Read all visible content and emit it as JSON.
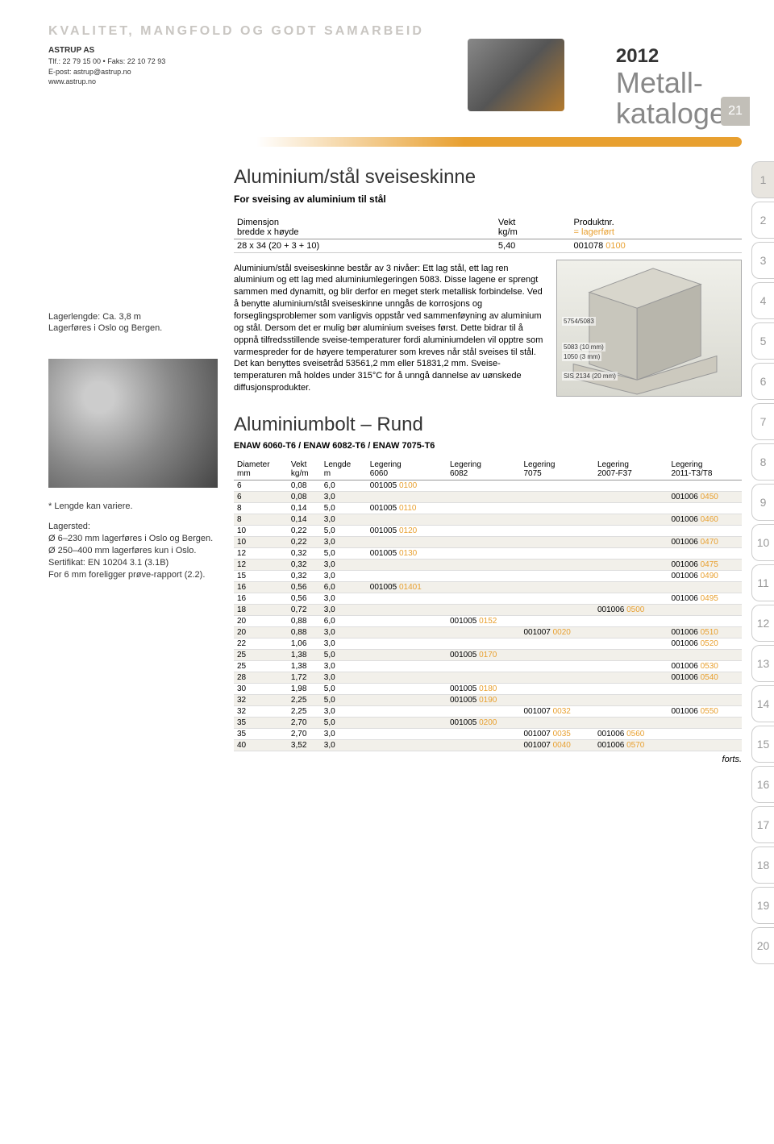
{
  "header": {
    "tagline": "KVALITET, MANGFOLD OG GODT SAMARBEID",
    "company": {
      "name": "ASTRUP AS",
      "phone": "Tlf.: 22 79 15 00 • Faks: 22 10 72 93",
      "email": "E-post: astrup@astrup.no",
      "web": "www.astrup.no"
    },
    "year": "2012",
    "catalog_line1": "Metall-",
    "catalog_line2": "katalogen",
    "page_number": "21"
  },
  "side_tabs": [
    "1",
    "2",
    "3",
    "4",
    "5",
    "6",
    "7",
    "8",
    "9",
    "10",
    "11",
    "12",
    "13",
    "14",
    "15",
    "16",
    "17",
    "18",
    "19",
    "20"
  ],
  "section1": {
    "title": "Aluminium/stål sveiseskinne",
    "subtitle": "For sveising av aluminium til stål",
    "left_note_1": "Lagerlengde: Ca. 3,8 m",
    "left_note_2": "Lagerføres i Oslo og Bergen.",
    "table_headers": {
      "dim_l1": "Dimensjon",
      "dim_l2": "bredde x høyde",
      "vekt_l1": "Vekt",
      "vekt_l2": "kg/m",
      "prod_l1": "Produktnr.",
      "prod_l2": "= lagerført"
    },
    "table_row": {
      "dim": "28 x 34 (20 + 3 + 10)",
      "vekt": "5,40",
      "prod_pre": "001078 ",
      "prod_sfx": "0100"
    },
    "body": "Aluminium/stål sveiseskinne består av 3 nivåer: Ett lag stål, ett lag ren aluminium og ett lag med aluminiumlegeringen 5083. Disse lagene er sprengt sammen med dynamitt, og blir derfor en meget sterk metallisk forbindelse. Ved å benytte aluminium/stål sveiseskinne unngås de korrosjons og forseglingsproblemer som vanligvis oppstår ved sammenføyning av aluminium og stål. Dersom det er mulig bør aluminium sveises først. Dette bidrar til å oppnå tilfredsstillende sveise-temperaturer fordi aluminiumdelen vil opptre som varmespreder for de høyere temperaturer som kreves når stål sveises til stål. Det kan benyttes sveisetråd 53561,2 mm eller 51831,2 mm. Sveise-temperaturen må holdes under 315°C for å unngå dannelse av uønskede diffusjonsprodukter.",
    "diagram_labels": {
      "a": "5754/5083",
      "b": "5083 (10 mm)",
      "c": "1050 (3 mm)",
      "d": "SIS 2134 (20 mm)"
    }
  },
  "section2": {
    "title": "Aluminiumbolt – Rund",
    "subtitle": "ENAW 6060-T6 / ENAW 6082-T6 / ENAW 7075-T6",
    "left_notes": [
      "* Lengde kan variere.",
      "Lagersted:",
      "Ø 6–230 mm lagerføres i Oslo og Bergen.",
      "Ø 250–400 mm lagerføres kun i Oslo.",
      "Sertifikat: EN 10204 3.1 (3.1B)",
      "For 6 mm foreligger prøve-rapport (2.2)."
    ],
    "headers": {
      "dia_l1": "Diameter",
      "dia_l2": "mm",
      "vekt_l1": "Vekt",
      "vekt_l2": "kg/m",
      "len_l1": "Lengde",
      "len_l2": "m",
      "leg1_l1": "Legering",
      "leg1_l2": "6060",
      "leg2_l1": "Legering",
      "leg2_l2": "6082",
      "leg3_l1": "Legering",
      "leg3_l2": "7075",
      "leg4_l1": "Legering",
      "leg4_l2": "2007-F37",
      "leg5_l1": "Legering",
      "leg5_l2": "2011-T3/T8"
    },
    "rows": [
      {
        "d": "6",
        "w": "0,08",
        "l": "6,0",
        "c1p": "001005 ",
        "c1s": "0100",
        "c2p": "",
        "c2s": "",
        "c3p": "",
        "c3s": "",
        "c4p": "",
        "c4s": "",
        "c5p": "",
        "c5s": ""
      },
      {
        "d": "6",
        "w": "0,08",
        "l": "3,0",
        "c1p": "",
        "c1s": "",
        "c2p": "",
        "c2s": "",
        "c3p": "",
        "c3s": "",
        "c4p": "",
        "c4s": "",
        "c5p": "001006 ",
        "c5s": "0450"
      },
      {
        "d": "8",
        "w": "0,14",
        "l": "5,0",
        "c1p": "001005 ",
        "c1s": "0110",
        "c2p": "",
        "c2s": "",
        "c3p": "",
        "c3s": "",
        "c4p": "",
        "c4s": "",
        "c5p": "",
        "c5s": ""
      },
      {
        "d": "8",
        "w": "0,14",
        "l": "3,0",
        "c1p": "",
        "c1s": "",
        "c2p": "",
        "c2s": "",
        "c3p": "",
        "c3s": "",
        "c4p": "",
        "c4s": "",
        "c5p": "001006 ",
        "c5s": "0460"
      },
      {
        "d": "10",
        "w": "0,22",
        "l": "5,0",
        "c1p": "001005 ",
        "c1s": "0120",
        "c2p": "",
        "c2s": "",
        "c3p": "",
        "c3s": "",
        "c4p": "",
        "c4s": "",
        "c5p": "",
        "c5s": ""
      },
      {
        "d": "10",
        "w": "0,22",
        "l": "3,0",
        "c1p": "",
        "c1s": "",
        "c2p": "",
        "c2s": "",
        "c3p": "",
        "c3s": "",
        "c4p": "",
        "c4s": "",
        "c5p": "001006 ",
        "c5s": "0470"
      },
      {
        "d": "12",
        "w": "0,32",
        "l": "5,0",
        "c1p": "001005 ",
        "c1s": "0130",
        "c2p": "",
        "c2s": "",
        "c3p": "",
        "c3s": "",
        "c4p": "",
        "c4s": "",
        "c5p": "",
        "c5s": ""
      },
      {
        "d": "12",
        "w": "0,32",
        "l": "3,0",
        "c1p": "",
        "c1s": "",
        "c2p": "",
        "c2s": "",
        "c3p": "",
        "c3s": "",
        "c4p": "",
        "c4s": "",
        "c5p": "001006 ",
        "c5s": "0475"
      },
      {
        "d": "15",
        "w": "0,32",
        "l": "3,0",
        "c1p": "",
        "c1s": "",
        "c2p": "",
        "c2s": "",
        "c3p": "",
        "c3s": "",
        "c4p": "",
        "c4s": "",
        "c5p": "001006 ",
        "c5s": "0490"
      },
      {
        "d": "16",
        "w": "0,56",
        "l": "6,0",
        "c1p": "001005 ",
        "c1s": "01401",
        "c2p": "",
        "c2s": "",
        "c3p": "",
        "c3s": "",
        "c4p": "",
        "c4s": "",
        "c5p": "",
        "c5s": ""
      },
      {
        "d": "16",
        "w": "0,56",
        "l": "3,0",
        "c1p": "",
        "c1s": "",
        "c2p": "",
        "c2s": "",
        "c3p": "",
        "c3s": "",
        "c4p": "",
        "c4s": "",
        "c5p": "001006 ",
        "c5s": "0495"
      },
      {
        "d": "18",
        "w": "0,72",
        "l": "3,0",
        "c1p": "",
        "c1s": "",
        "c2p": "",
        "c2s": "",
        "c3p": "",
        "c3s": "",
        "c4p": "001006 ",
        "c4s": "0500",
        "c5p": "",
        "c5s": ""
      },
      {
        "d": "20",
        "w": "0,88",
        "l": "6,0",
        "c1p": "",
        "c1s": "",
        "c2p": "001005 ",
        "c2s": "0152",
        "c3p": "",
        "c3s": "",
        "c4p": "",
        "c4s": "",
        "c5p": "",
        "c5s": ""
      },
      {
        "d": "20",
        "w": "0,88",
        "l": "3,0",
        "c1p": "",
        "c1s": "",
        "c2p": "",
        "c2s": "",
        "c3p": "001007 ",
        "c3s": "0020",
        "c4p": "",
        "c4s": "",
        "c5p": "001006 ",
        "c5s": "0510"
      },
      {
        "d": "22",
        "w": "1,06",
        "l": "3,0",
        "c1p": "",
        "c1s": "",
        "c2p": "",
        "c2s": "",
        "c3p": "",
        "c3s": "",
        "c4p": "",
        "c4s": "",
        "c5p": "001006 ",
        "c5s": "0520"
      },
      {
        "d": "25",
        "w": "1,38",
        "l": "5,0",
        "c1p": "",
        "c1s": "",
        "c2p": "001005 ",
        "c2s": "0170",
        "c3p": "",
        "c3s": "",
        "c4p": "",
        "c4s": "",
        "c5p": "",
        "c5s": ""
      },
      {
        "d": "25",
        "w": "1,38",
        "l": "3,0",
        "c1p": "",
        "c1s": "",
        "c2p": "",
        "c2s": "",
        "c3p": "",
        "c3s": "",
        "c4p": "",
        "c4s": "",
        "c5p": "001006 ",
        "c5s": "0530"
      },
      {
        "d": "28",
        "w": "1,72",
        "l": "3,0",
        "c1p": "",
        "c1s": "",
        "c2p": "",
        "c2s": "",
        "c3p": "",
        "c3s": "",
        "c4p": "",
        "c4s": "",
        "c5p": "001006 ",
        "c5s": "0540"
      },
      {
        "d": "30",
        "w": "1,98",
        "l": "5,0",
        "c1p": "",
        "c1s": "",
        "c2p": "001005 ",
        "c2s": "0180",
        "c3p": "",
        "c3s": "",
        "c4p": "",
        "c4s": "",
        "c5p": "",
        "c5s": ""
      },
      {
        "d": "32",
        "w": "2,25",
        "l": "5,0",
        "c1p": "",
        "c1s": "",
        "c2p": "001005 ",
        "c2s": "0190",
        "c3p": "",
        "c3s": "",
        "c4p": "",
        "c4s": "",
        "c5p": "",
        "c5s": ""
      },
      {
        "d": "32",
        "w": "2,25",
        "l": "3,0",
        "c1p": "",
        "c1s": "",
        "c2p": "",
        "c2s": "",
        "c3p": "001007 ",
        "c3s": "0032",
        "c4p": "",
        "c4s": "",
        "c5p": "001006 ",
        "c5s": "0550"
      },
      {
        "d": "35",
        "w": "2,70",
        "l": "5,0",
        "c1p": "",
        "c1s": "",
        "c2p": "001005 ",
        "c2s": "0200",
        "c3p": "",
        "c3s": "",
        "c4p": "",
        "c4s": "",
        "c5p": "",
        "c5s": ""
      },
      {
        "d": "35",
        "w": "2,70",
        "l": "3,0",
        "c1p": "",
        "c1s": "",
        "c2p": "",
        "c2s": "",
        "c3p": "001007 ",
        "c3s": "0035",
        "c4p": "001006 ",
        "c4s": "0560",
        "c5p": "",
        "c5s": ""
      },
      {
        "d": "40",
        "w": "3,52",
        "l": "3,0",
        "c1p": "",
        "c1s": "",
        "c2p": "",
        "c2s": "",
        "c3p": "001007 ",
        "c3s": "0040",
        "c4p": "001006 ",
        "c4s": "0570",
        "c5p": "",
        "c5s": ""
      }
    ],
    "forts": "forts."
  },
  "colors": {
    "orange": "#e8a030",
    "gray": "#c2bfb8"
  }
}
